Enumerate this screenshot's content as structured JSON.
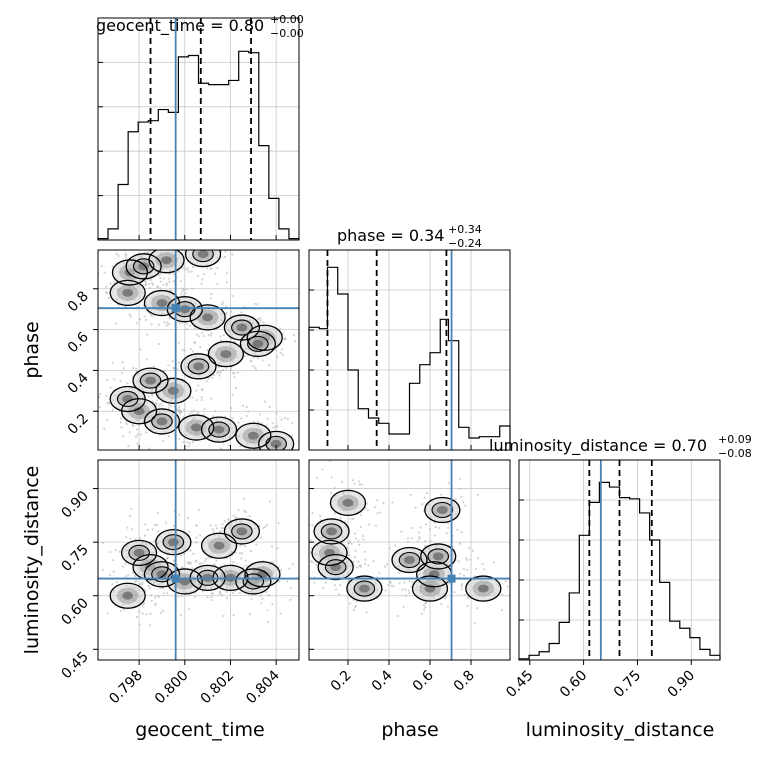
{
  "chart_data": {
    "type": "corner",
    "parameters": [
      "geocent_time",
      "phase",
      "luminosity_distance"
    ],
    "truth": {
      "geocent_time": 0.7996,
      "phase": 0.705,
      "luminosity_distance": 0.648
    },
    "truth_color": "#4682b4",
    "panels": {
      "geocent_time": {
        "title_prefix": "geocent_time = ",
        "value": "0.80",
        "plus": "+0.00",
        "minus": "−0.00",
        "xlim": [
          0.7962,
          0.805
        ],
        "quantiles": [
          0.7985,
          0.8007,
          0.8029
        ],
        "hist_edges": [
          0.7962,
          0.79664,
          0.79708,
          0.79752,
          0.79796,
          0.7984,
          0.79884,
          0.79928,
          0.79972,
          0.80016,
          0.8006,
          0.80104,
          0.80148,
          0.80192,
          0.80236,
          0.8028,
          0.80324,
          0.80368,
          0.80412,
          0.80456,
          0.805
        ],
        "hist_counts": [
          1,
          8,
          40,
          78,
          85,
          86,
          94,
          92,
          132,
          133,
          113,
          112,
          112,
          115,
          136,
          135,
          68,
          30,
          8,
          1
        ],
        "hist_max": 160
      },
      "phase": {
        "title_prefix": "phase = ",
        "value": "0.34",
        "plus": "+0.34",
        "minus": "−0.24",
        "xlim": [
          0.01,
          0.99
        ],
        "quantiles": [
          0.1,
          0.34,
          0.68
        ],
        "hist_edges": [
          0.01,
          0.06,
          0.1,
          0.15,
          0.2,
          0.25,
          0.3,
          0.35,
          0.4,
          0.45,
          0.5,
          0.55,
          0.6,
          0.65,
          0.69,
          0.74,
          0.79,
          0.84,
          0.89,
          0.94,
          0.99
        ],
        "hist_counts": [
          92,
          91,
          137,
          117,
          60,
          31,
          24,
          20,
          12,
          12,
          50,
          64,
          73,
          98,
          82,
          17,
          9,
          10,
          10,
          18
        ],
        "hist_max": 150
      },
      "luminosity_distance": {
        "title_prefix": "luminosity_distance = ",
        "value": "0.70",
        "plus": "+0.09",
        "minus": "−0.08",
        "xlim": [
          0.42,
          0.98
        ],
        "quantiles": [
          0.616,
          0.7,
          0.79
        ],
        "hist_edges": [
          0.42,
          0.448,
          0.476,
          0.504,
          0.532,
          0.56,
          0.588,
          0.616,
          0.644,
          0.672,
          0.7,
          0.728,
          0.756,
          0.784,
          0.812,
          0.84,
          0.868,
          0.896,
          0.924,
          0.952,
          0.98
        ],
        "hist_counts": [
          1,
          4,
          7,
          14,
          32,
          57,
          106,
          134,
          151,
          147,
          138,
          137,
          125,
          102,
          66,
          33,
          27,
          19,
          9,
          4
        ],
        "hist_max": 170
      }
    },
    "axes": {
      "geocent_time": {
        "label": "geocent_time",
        "ticks": [
          0.798,
          0.8,
          0.802,
          0.804
        ],
        "tick_labels": [
          "0.798",
          "0.800",
          "0.802",
          "0.804"
        ]
      },
      "phase": {
        "label": "phase",
        "ticks": [
          0.2,
          0.4,
          0.6,
          0.8
        ],
        "tick_labels": [
          "0.2",
          "0.4",
          "0.6",
          "0.8"
        ],
        "ylim": [
          0.01,
          0.99
        ]
      },
      "luminosity_distance": {
        "label": "luminosity_distance",
        "ticks": [
          0.45,
          0.6,
          0.75,
          0.9
        ],
        "tick_labels": [
          "0.45",
          "0.60",
          "0.75",
          "0.90"
        ],
        "ylim": [
          0.42,
          0.98
        ]
      }
    },
    "grid": true,
    "density_points": {
      "geocent_time_vs_phase": [
        [
          0.7975,
          0.26
        ],
        [
          0.798,
          0.2
        ],
        [
          0.799,
          0.15
        ],
        [
          0.8005,
          0.12
        ],
        [
          0.8015,
          0.11
        ],
        [
          0.803,
          0.08
        ],
        [
          0.804,
          0.04
        ],
        [
          0.8035,
          0.56
        ],
        [
          0.8025,
          0.61
        ],
        [
          0.801,
          0.66
        ],
        [
          0.8,
          0.7
        ],
        [
          0.799,
          0.73
        ],
        [
          0.8006,
          0.42
        ],
        [
          0.8018,
          0.48
        ],
        [
          0.8032,
          0.53
        ],
        [
          0.7976,
          0.88
        ],
        [
          0.7982,
          0.91
        ],
        [
          0.7992,
          0.94
        ],
        [
          0.8008,
          0.97
        ],
        [
          0.7995,
          0.3
        ],
        [
          0.7985,
          0.35
        ],
        [
          0.7975,
          0.78
        ]
      ],
      "geocent_time_vs_luminosity_distance": [
        [
          0.798,
          0.72
        ],
        [
          0.7985,
          0.68
        ],
        [
          0.799,
          0.66
        ],
        [
          0.8,
          0.64
        ],
        [
          0.801,
          0.65
        ],
        [
          0.802,
          0.65
        ],
        [
          0.803,
          0.64
        ],
        [
          0.8034,
          0.66
        ],
        [
          0.7995,
          0.75
        ],
        [
          0.8015,
          0.74
        ],
        [
          0.8025,
          0.78
        ],
        [
          0.7975,
          0.6
        ]
      ],
      "phase_vs_luminosity_distance": [
        [
          0.12,
          0.78
        ],
        [
          0.11,
          0.72
        ],
        [
          0.14,
          0.68
        ],
        [
          0.62,
          0.66
        ],
        [
          0.64,
          0.71
        ],
        [
          0.6,
          0.62
        ],
        [
          0.28,
          0.62
        ],
        [
          0.86,
          0.62
        ],
        [
          0.5,
          0.7
        ],
        [
          0.2,
          0.86
        ],
        [
          0.66,
          0.84
        ]
      ]
    }
  }
}
